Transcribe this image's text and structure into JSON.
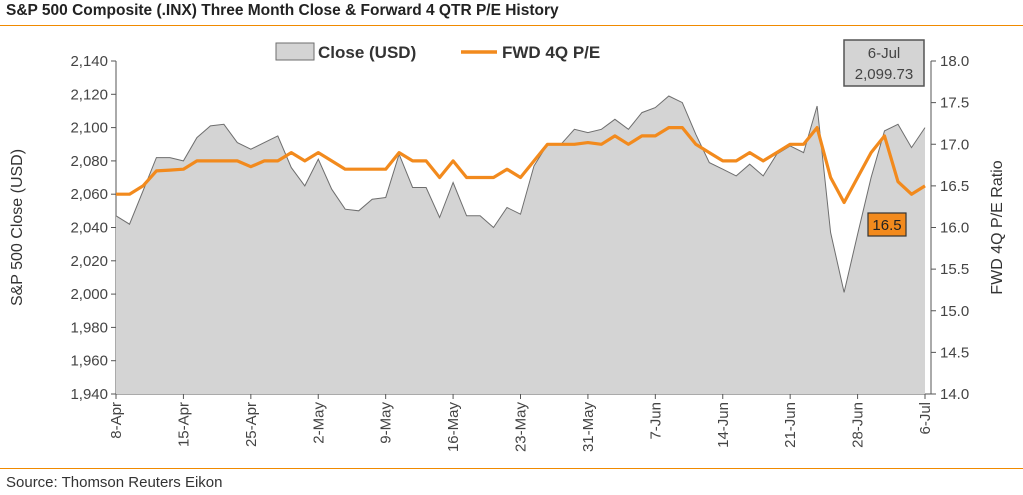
{
  "title": "S&P 500 Composite (.INX) Three Month Close & Forward 4 QTR P/E History",
  "source": "Source: Thomson Reuters Eikon",
  "chart_data": {
    "type": "area+line",
    "title": "S&P 500 Composite (.INX) Three Month Close & Forward 4 QTR P/E History",
    "ylabel": "S&P 500 Close (USD)",
    "y2label": "FWD 4Q P/E Ratio",
    "ylim": [
      1940,
      2140
    ],
    "y2lim": [
      14.0,
      18.0
    ],
    "yticks": [
      "1,940",
      "1,960",
      "1,980",
      "2,000",
      "2,020",
      "2,040",
      "2,060",
      "2,080",
      "2,100",
      "2,120",
      "2,140"
    ],
    "y2ticks": [
      "14.0",
      "14.5",
      "15.0",
      "15.5",
      "16.0",
      "16.5",
      "17.0",
      "17.5",
      "18.0"
    ],
    "xticks": [
      "8-Apr",
      "15-Apr",
      "25-Apr",
      "2-May",
      "9-May",
      "16-May",
      "23-May",
      "31-May",
      "7-Jun",
      "14-Jun",
      "21-Jun",
      "28-Jun",
      "6-Jul"
    ],
    "legend": {
      "position": "top",
      "entries": [
        "Close (USD)",
        "FWD 4Q P/E"
      ]
    },
    "colors": {
      "area": "#d4d4d4",
      "area_stroke": "#6e6e6e",
      "line": "#f28a1d"
    },
    "series": [
      {
        "name": "Close (USD)",
        "type": "area",
        "values": [
          2047,
          2042,
          2062,
          2082,
          2082,
          2080,
          2094,
          2101,
          2102,
          2091,
          2087,
          2091,
          2095,
          2076,
          2065,
          2081,
          2063,
          2051,
          2050,
          2057,
          2058,
          2084,
          2064,
          2064,
          2046,
          2067,
          2047,
          2047,
          2040,
          2052,
          2048,
          2077,
          2090,
          2090,
          2099,
          2097,
          2099,
          2105,
          2099,
          2109,
          2112,
          2119,
          2115,
          2096,
          2079,
          2075,
          2071,
          2078,
          2071,
          2084,
          2089,
          2085,
          2113,
          2037,
          2001,
          2036,
          2070,
          2098,
          2102,
          2088,
          2100
        ]
      },
      {
        "name": "FWD 4Q P/E",
        "type": "line",
        "axis": "right",
        "values": [
          16.4,
          16.4,
          16.5,
          16.68,
          16.69,
          16.7,
          16.8,
          16.8,
          16.8,
          16.8,
          16.73,
          16.8,
          16.8,
          16.9,
          16.8,
          16.9,
          16.8,
          16.7,
          16.7,
          16.7,
          16.7,
          16.9,
          16.8,
          16.8,
          16.6,
          16.8,
          16.6,
          16.6,
          16.6,
          16.7,
          16.6,
          16.8,
          17.0,
          17.0,
          17.0,
          17.02,
          17.0,
          17.1,
          17.0,
          17.1,
          17.1,
          17.2,
          17.2,
          17.0,
          16.9,
          16.8,
          16.8,
          16.9,
          16.8,
          16.9,
          17.0,
          17.0,
          17.2,
          16.6,
          16.3,
          16.6,
          16.9,
          17.1,
          16.55,
          16.4,
          16.5
        ]
      }
    ],
    "annotations": [
      {
        "label": "6-Jul",
        "value": "2,099.73"
      },
      {
        "label": "16.5"
      }
    ]
  }
}
